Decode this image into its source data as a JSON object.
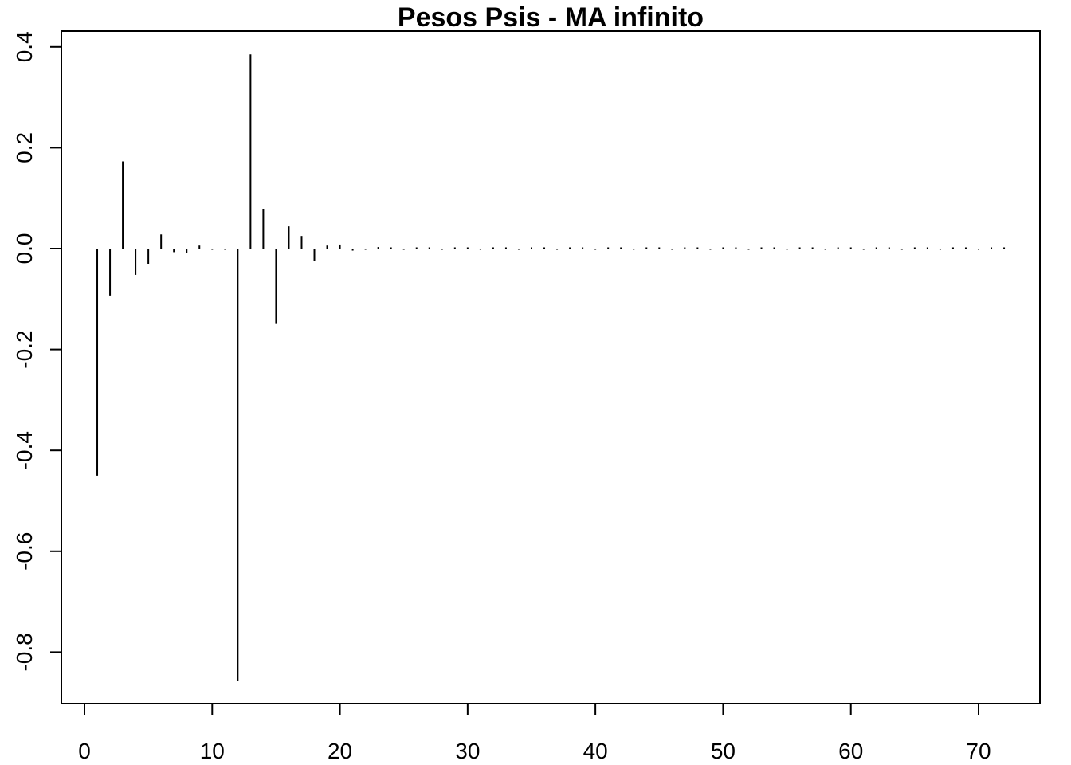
{
  "chart_data": {
    "type": "line",
    "subtype": "histogram-spikes",
    "title": "Pesos Psis - MA infinito",
    "xlabel": "",
    "ylabel": "",
    "xlim": [
      0,
      72
    ],
    "ylim": [
      -0.9,
      0.43
    ],
    "x_ticks": [
      0,
      10,
      20,
      30,
      40,
      50,
      60,
      70
    ],
    "x_tick_labels": [
      "0",
      "10",
      "20",
      "30",
      "40",
      "50",
      "60",
      "70"
    ],
    "y_ticks": [
      -0.8,
      -0.6,
      -0.4,
      -0.2,
      0.0,
      0.2,
      0.4
    ],
    "y_tick_labels": [
      "-0.8",
      "-0.6",
      "-0.4",
      "-0.2",
      "0.0",
      "0.2",
      "0.4"
    ],
    "grid": false,
    "legend": "none",
    "color": "#000000",
    "series": [
      {
        "x": [
          1,
          2,
          3,
          4,
          5,
          6,
          7,
          8,
          9,
          10,
          11,
          12,
          13,
          14,
          15,
          16,
          17,
          18,
          19,
          20,
          21,
          22,
          23,
          24,
          25,
          26,
          27,
          28,
          29,
          30,
          31,
          32,
          33,
          34,
          35,
          36,
          37,
          38,
          39,
          40,
          41,
          42,
          43,
          44,
          45,
          46,
          47,
          48,
          49,
          50,
          51,
          52,
          53,
          54,
          55,
          56,
          57,
          58,
          59,
          60,
          61,
          62,
          63,
          64,
          65,
          66,
          67,
          68,
          69,
          70,
          71,
          72
        ],
        "values": [
          -0.45,
          -0.093,
          0.173,
          -0.052,
          -0.03,
          0.028,
          -0.007,
          -0.008,
          0.006,
          -0.001,
          -0.001,
          -0.857,
          0.385,
          0.079,
          -0.148,
          0.044,
          0.025,
          -0.024,
          0.006,
          0.008,
          -0.004,
          -0.002,
          0.003,
          0.001,
          -0.002,
          0.001,
          0.001,
          -0.001,
          0.001,
          0.001,
          -0.001,
          0.001,
          0.001,
          -0.001,
          0.001,
          0.001,
          -0.001,
          0.001,
          0.001,
          -0.001,
          0.001,
          0.001,
          -0.001,
          0.001,
          0.001,
          -0.001,
          0.001,
          0.001,
          -0.001,
          0.001,
          0.001,
          -0.001,
          0.001,
          0.001,
          -0.001,
          0.001,
          0.001,
          -0.001,
          0.001,
          0.001,
          -0.001,
          0.001,
          0.001,
          -0.001,
          0.001,
          0.001,
          -0.001,
          0.001,
          0.001,
          -0.001,
          0.001,
          0.001
        ]
      }
    ]
  }
}
